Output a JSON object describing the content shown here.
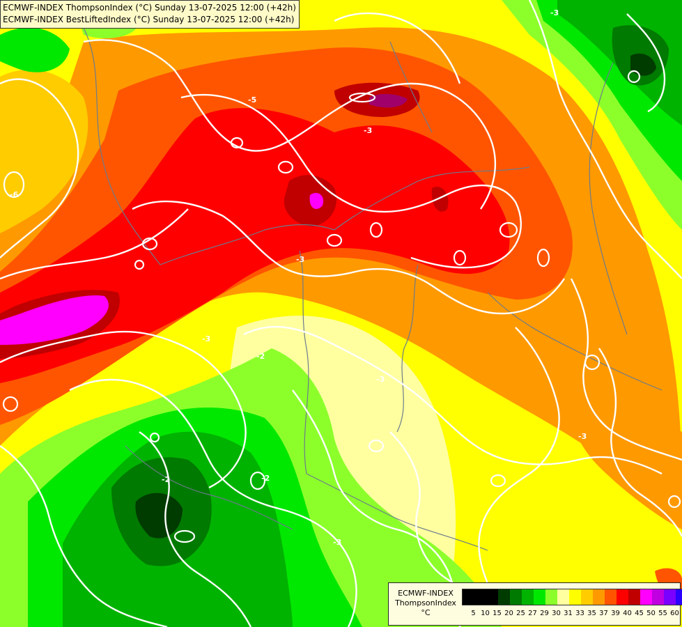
{
  "header": {
    "line1": "ECMWF-INDEX ThompsonIndex (°C) Sunday 13-07-2025 12:00 (+42h)",
    "line2": "ECMWF-INDEX BestLiftedIndex (°C) Sunday 13-07-2025 12:00 (+42h)"
  },
  "legend": {
    "model": "ECMWF-INDEX",
    "field": "ThompsonIndex",
    "unit": "°C",
    "ticks": [
      "5",
      "10",
      "15",
      "20",
      "25",
      "27",
      "29",
      "30",
      "31",
      "33",
      "35",
      "37",
      "39",
      "40",
      "45",
      "50",
      "55",
      "60"
    ],
    "colors": [
      "#000000",
      "#000000",
      "#000000",
      "#003b00",
      "#007a00",
      "#00b300",
      "#00e800",
      "#8cff2b",
      "#ffffa0",
      "#ffff00",
      "#ffcc00",
      "#ff9900",
      "#ff5500",
      "#ff0000",
      "#c00000",
      "#ff00ff",
      "#c000e0",
      "#7a00ff",
      "#2b00ff",
      "#0000ff"
    ]
  },
  "contour_labels": [
    "-3",
    "-3",
    "-5",
    "-3",
    "-6",
    "-3",
    "-2",
    "-2",
    "-3",
    "-3",
    "-3",
    "-3",
    "-3",
    "-2"
  ],
  "map_colors": {
    "yellow": "#ffff00",
    "pale_yellow": "#ffffa0",
    "orange_light": "#ffcc00",
    "orange": "#ff9900",
    "red_orange": "#ff5500",
    "red": "#ff0000",
    "dark_red": "#c00000",
    "magenta": "#ff00ff",
    "light_green": "#8cff2b",
    "green": "#00e800",
    "mid_green": "#00b300",
    "dark_green": "#007a00",
    "darkest_green": "#003b00",
    "contour": "#ffffff",
    "border": "#6b7b8c"
  }
}
